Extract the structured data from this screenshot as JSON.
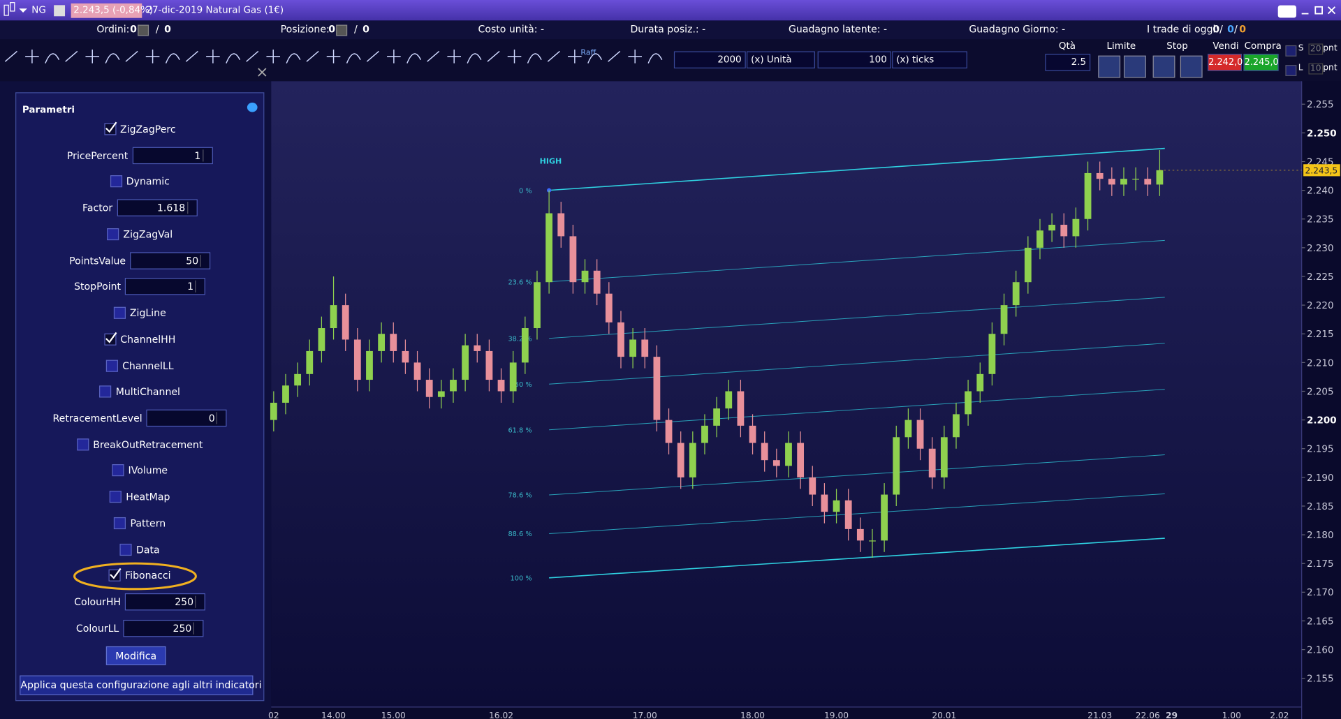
{
  "header": {
    "symbol": "NG",
    "quote": "2.243,5 (-0,84%)",
    "instrument": "27-dic-2019 Natural Gas (1€)"
  },
  "status": {
    "orders_label": "Ordini:",
    "orders": [
      0,
      0
    ],
    "position_label": "Posizione:",
    "position": [
      0,
      0
    ],
    "separator": "/",
    "unit_cost": "Costo unità: -",
    "duration": "Durata posiz.: -",
    "latent": "Guadagno latente: -",
    "day_gain": "Guadagno Giorno: -",
    "trades_label": "I trade di oggi:",
    "trades": [
      0,
      0,
      0
    ]
  },
  "toolbar": {
    "raff": "Raff",
    "qty_value": 2000,
    "qty_unit": "(x) Unità",
    "ticks_value": 100,
    "ticks_unit": "(x) ticks",
    "qta_label": "Qtà",
    "qta": 2.5,
    "limit": "Limite",
    "stop": "Stop",
    "sell_label": "Vendi",
    "sell": "2.242,0",
    "buy_label": "Compra",
    "buy": "2.245,0",
    "s": "S",
    "l": "L",
    "s_pnt": 20,
    "l_pnt": 10,
    "pnt": "pnt"
  },
  "panel": {
    "title": "Parametri",
    "params": [
      {
        "label": "ZigZagPerc",
        "checked": true
      },
      {
        "label": "PricePercent",
        "value": 1
      },
      {
        "label": "Dynamic",
        "checked": false
      },
      {
        "label": "Factor",
        "value": 1.618
      },
      {
        "label": "ZigZagVal",
        "checked": false
      },
      {
        "label": "PointsValue",
        "value": 50
      },
      {
        "label": "StopPoint",
        "value": 1
      },
      {
        "label": "ZigLine",
        "checked": false
      },
      {
        "label": "ChannelHH",
        "checked": true
      },
      {
        "label": "ChannelLL",
        "checked": false
      },
      {
        "label": "MultiChannel",
        "checked": false
      },
      {
        "label": "RetracementLevel",
        "value": 0
      },
      {
        "label": "BreakOutRetracement",
        "checked": false
      },
      {
        "label": "IVolume",
        "checked": false
      },
      {
        "label": "HeatMap",
        "checked": false
      },
      {
        "label": "Pattern",
        "checked": false
      },
      {
        "label": "Data",
        "checked": false
      },
      {
        "label": "Fibonacci",
        "checked": true
      },
      {
        "label": "ColourHH",
        "value": 250
      },
      {
        "label": "ColourLL",
        "value": 250
      }
    ],
    "modify": "Modifica",
    "apply": "Applica questa configurazione agli altri indicatori"
  },
  "chart_data": {
    "type": "candlestick",
    "up_color": "#8fd14f",
    "down_color": "#e8909a",
    "categories": [
      "02",
      null,
      null,
      null,
      null,
      "14.00",
      null,
      null,
      null,
      null,
      "15.00",
      null,
      null,
      null,
      null,
      null,
      null,
      null,
      null,
      "16.02",
      null,
      null,
      null,
      null,
      null,
      null,
      null,
      null,
      null,
      null,
      null,
      "17.00",
      null,
      null,
      null,
      null,
      null,
      null,
      null,
      null,
      "18.00",
      null,
      null,
      null,
      null,
      null,
      null,
      "19.00",
      null,
      null,
      null,
      null,
      null,
      null,
      null,
      null,
      "20.01",
      null,
      null,
      null,
      null,
      null,
      null,
      null,
      null,
      null,
      null,
      null,
      null,
      "21.03",
      null,
      null,
      null,
      "22.06",
      null,
      "29",
      null,
      null,
      null,
      null,
      "1.00",
      null,
      null,
      null,
      "2.02",
      null
    ],
    "open": [
      2.2,
      2.203,
      2.206,
      2.208,
      2.212,
      2.216,
      2.22,
      2.214,
      2.207,
      2.212,
      2.215,
      2.212,
      2.21,
      2.207,
      2.204,
      2.205,
      2.207,
      2.213,
      2.212,
      2.207,
      2.205,
      2.21,
      2.216,
      2.224,
      2.236,
      2.232,
      2.224,
      2.226,
      2.222,
      2.217,
      2.211,
      2.214,
      2.211,
      2.2,
      2.196,
      2.19,
      2.196,
      2.199,
      2.202,
      2.205,
      2.199,
      2.196,
      2.193,
      2.192,
      2.196,
      2.19,
      2.187,
      2.184,
      2.186,
      2.181,
      2.179,
      2.179,
      2.187,
      2.197,
      2.2,
      2.195,
      2.19,
      2.197,
      2.201,
      2.205,
      2.208,
      2.215,
      2.22,
      2.224,
      2.23,
      2.233,
      2.234,
      2.232,
      2.235,
      2.243,
      2.242,
      2.241,
      2.242,
      2.242,
      2.241,
      null,
      null,
      null,
      null,
      null,
      null,
      null,
      null,
      null,
      null,
      null
    ],
    "high": [
      2.205,
      2.208,
      2.21,
      2.214,
      2.218,
      2.225,
      2.222,
      2.216,
      2.214,
      2.217,
      2.217,
      2.214,
      2.212,
      2.209,
      2.207,
      2.209,
      2.215,
      2.215,
      2.214,
      2.209,
      2.212,
      2.218,
      2.226,
      2.24,
      2.238,
      2.234,
      2.228,
      2.228,
      2.224,
      2.219,
      2.216,
      2.216,
      2.213,
      2.202,
      2.198,
      2.198,
      2.201,
      2.204,
      2.207,
      2.207,
      2.201,
      2.198,
      2.195,
      2.198,
      2.198,
      2.192,
      2.189,
      2.188,
      2.188,
      2.183,
      2.181,
      2.189,
      2.199,
      2.202,
      2.202,
      2.197,
      2.199,
      2.203,
      2.207,
      2.21,
      2.217,
      2.222,
      2.226,
      2.232,
      2.235,
      2.236,
      2.236,
      2.237,
      2.245,
      2.245,
      2.244,
      2.244,
      2.244,
      2.244,
      2.247,
      null,
      null,
      null,
      null,
      null,
      null,
      null,
      null,
      null,
      null,
      null
    ],
    "low": [
      2.198,
      2.201,
      2.204,
      2.206,
      2.21,
      2.214,
      2.212,
      2.205,
      2.205,
      2.21,
      2.21,
      2.208,
      2.205,
      2.202,
      2.202,
      2.203,
      2.205,
      2.21,
      2.205,
      2.203,
      2.203,
      2.208,
      2.214,
      2.222,
      2.23,
      2.222,
      2.222,
      2.22,
      2.215,
      2.209,
      2.209,
      2.209,
      2.198,
      2.194,
      2.188,
      2.188,
      2.194,
      2.197,
      2.2,
      2.197,
      2.194,
      2.191,
      2.19,
      2.19,
      2.188,
      2.185,
      2.182,
      2.182,
      2.179,
      2.177,
      2.176,
      2.177,
      2.185,
      2.195,
      2.193,
      2.188,
      2.188,
      2.195,
      2.199,
      2.203,
      2.206,
      2.213,
      2.218,
      2.222,
      2.228,
      2.231,
      2.23,
      2.23,
      2.233,
      2.24,
      2.239,
      2.239,
      2.24,
      2.239,
      2.239,
      null,
      null,
      null,
      null,
      null,
      null,
      null,
      null,
      null,
      null,
      null
    ],
    "close": [
      2.203,
      2.206,
      2.208,
      2.212,
      2.216,
      2.22,
      2.214,
      2.207,
      2.212,
      2.215,
      2.212,
      2.21,
      2.207,
      2.204,
      2.205,
      2.207,
      2.213,
      2.212,
      2.207,
      2.205,
      2.21,
      2.216,
      2.224,
      2.236,
      2.232,
      2.224,
      2.226,
      2.222,
      2.217,
      2.211,
      2.214,
      2.211,
      2.2,
      2.196,
      2.19,
      2.196,
      2.199,
      2.202,
      2.205,
      2.199,
      2.196,
      2.193,
      2.192,
      2.196,
      2.19,
      2.187,
      2.184,
      2.186,
      2.181,
      2.179,
      2.179,
      2.187,
      2.197,
      2.2,
      2.195,
      2.19,
      2.197,
      2.201,
      2.205,
      2.208,
      2.215,
      2.22,
      2.224,
      2.23,
      2.233,
      2.234,
      2.232,
      2.235,
      2.243,
      2.242,
      2.241,
      2.242,
      2.242,
      2.241,
      2.2435,
      null,
      null,
      null,
      null,
      null,
      null,
      null,
      null,
      null,
      null,
      null
    ],
    "ylim": [
      2.15,
      2.259
    ],
    "yticks": [
      2.155,
      {
        "value": 2.16,
        "label": "2.160"
      },
      2.165,
      {
        "value": 2.17,
        "label": "2.170"
      },
      2.175,
      {
        "value": 2.18,
        "label": "2.180"
      },
      2.185,
      {
        "value": 2.19,
        "label": "2.190"
      },
      2.195,
      {
        "value": 2.2,
        "label": "2.200"
      },
      2.205,
      {
        "value": 2.21,
        "label": "2.210"
      },
      2.215,
      {
        "value": 2.22,
        "label": "2.220"
      },
      2.225,
      {
        "value": 2.23,
        "label": "2.230"
      },
      2.235,
      {
        "value": 2.24,
        "label": "2.240"
      },
      2.245,
      {
        "value": 2.25,
        "label": "2.250"
      },
      2.255
    ],
    "price": 2.2435,
    "price_label": "2.243,5",
    "channel": {
      "label": "HIGH",
      "start_index": 23,
      "end_index": 74,
      "high": [
        2.24,
        2.2473
      ],
      "low": [
        2.1725,
        2.1794
      ],
      "color": "#2fd0e0"
    },
    "fib_levels": [
      {
        "value": 0,
        "label": "0 %"
      },
      {
        "value": 23.6,
        "label": "23.6 %"
      },
      {
        "value": 38.2,
        "label": "38.2 %"
      },
      {
        "value": 50,
        "label": "50 %"
      },
      {
        "value": 61.8,
        "label": "61.8 %"
      },
      {
        "value": 78.6,
        "label": "78.6 %"
      },
      {
        "value": 88.6,
        "label": "88.6 %"
      },
      {
        "value": 100,
        "label": "100 %"
      }
    ]
  }
}
